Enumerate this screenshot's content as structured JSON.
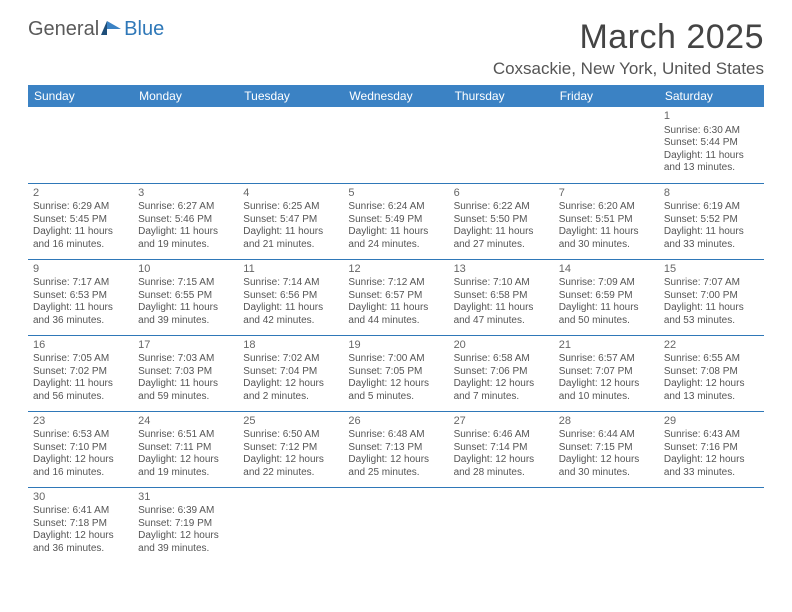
{
  "logo": {
    "text_general": "General",
    "text_blue": "Blue"
  },
  "title": "March 2025",
  "location": "Coxsackie, New York, United States",
  "colors": {
    "header_bg": "#3b82c4",
    "header_text": "#ffffff",
    "border": "#2f78b8",
    "body_text": "#555555",
    "title_text": "#444444"
  },
  "day_headers": [
    "Sunday",
    "Monday",
    "Tuesday",
    "Wednesday",
    "Thursday",
    "Friday",
    "Saturday"
  ],
  "weeks": [
    [
      null,
      null,
      null,
      null,
      null,
      null,
      {
        "n": "1",
        "sr": "Sunrise: 6:30 AM",
        "ss": "Sunset: 5:44 PM",
        "dl": "Daylight: 11 hours and 13 minutes."
      }
    ],
    [
      {
        "n": "2",
        "sr": "Sunrise: 6:29 AM",
        "ss": "Sunset: 5:45 PM",
        "dl": "Daylight: 11 hours and 16 minutes."
      },
      {
        "n": "3",
        "sr": "Sunrise: 6:27 AM",
        "ss": "Sunset: 5:46 PM",
        "dl": "Daylight: 11 hours and 19 minutes."
      },
      {
        "n": "4",
        "sr": "Sunrise: 6:25 AM",
        "ss": "Sunset: 5:47 PM",
        "dl": "Daylight: 11 hours and 21 minutes."
      },
      {
        "n": "5",
        "sr": "Sunrise: 6:24 AM",
        "ss": "Sunset: 5:49 PM",
        "dl": "Daylight: 11 hours and 24 minutes."
      },
      {
        "n": "6",
        "sr": "Sunrise: 6:22 AM",
        "ss": "Sunset: 5:50 PM",
        "dl": "Daylight: 11 hours and 27 minutes."
      },
      {
        "n": "7",
        "sr": "Sunrise: 6:20 AM",
        "ss": "Sunset: 5:51 PM",
        "dl": "Daylight: 11 hours and 30 minutes."
      },
      {
        "n": "8",
        "sr": "Sunrise: 6:19 AM",
        "ss": "Sunset: 5:52 PM",
        "dl": "Daylight: 11 hours and 33 minutes."
      }
    ],
    [
      {
        "n": "9",
        "sr": "Sunrise: 7:17 AM",
        "ss": "Sunset: 6:53 PM",
        "dl": "Daylight: 11 hours and 36 minutes."
      },
      {
        "n": "10",
        "sr": "Sunrise: 7:15 AM",
        "ss": "Sunset: 6:55 PM",
        "dl": "Daylight: 11 hours and 39 minutes."
      },
      {
        "n": "11",
        "sr": "Sunrise: 7:14 AM",
        "ss": "Sunset: 6:56 PM",
        "dl": "Daylight: 11 hours and 42 minutes."
      },
      {
        "n": "12",
        "sr": "Sunrise: 7:12 AM",
        "ss": "Sunset: 6:57 PM",
        "dl": "Daylight: 11 hours and 44 minutes."
      },
      {
        "n": "13",
        "sr": "Sunrise: 7:10 AM",
        "ss": "Sunset: 6:58 PM",
        "dl": "Daylight: 11 hours and 47 minutes."
      },
      {
        "n": "14",
        "sr": "Sunrise: 7:09 AM",
        "ss": "Sunset: 6:59 PM",
        "dl": "Daylight: 11 hours and 50 minutes."
      },
      {
        "n": "15",
        "sr": "Sunrise: 7:07 AM",
        "ss": "Sunset: 7:00 PM",
        "dl": "Daylight: 11 hours and 53 minutes."
      }
    ],
    [
      {
        "n": "16",
        "sr": "Sunrise: 7:05 AM",
        "ss": "Sunset: 7:02 PM",
        "dl": "Daylight: 11 hours and 56 minutes."
      },
      {
        "n": "17",
        "sr": "Sunrise: 7:03 AM",
        "ss": "Sunset: 7:03 PM",
        "dl": "Daylight: 11 hours and 59 minutes."
      },
      {
        "n": "18",
        "sr": "Sunrise: 7:02 AM",
        "ss": "Sunset: 7:04 PM",
        "dl": "Daylight: 12 hours and 2 minutes."
      },
      {
        "n": "19",
        "sr": "Sunrise: 7:00 AM",
        "ss": "Sunset: 7:05 PM",
        "dl": "Daylight: 12 hours and 5 minutes."
      },
      {
        "n": "20",
        "sr": "Sunrise: 6:58 AM",
        "ss": "Sunset: 7:06 PM",
        "dl": "Daylight: 12 hours and 7 minutes."
      },
      {
        "n": "21",
        "sr": "Sunrise: 6:57 AM",
        "ss": "Sunset: 7:07 PM",
        "dl": "Daylight: 12 hours and 10 minutes."
      },
      {
        "n": "22",
        "sr": "Sunrise: 6:55 AM",
        "ss": "Sunset: 7:08 PM",
        "dl": "Daylight: 12 hours and 13 minutes."
      }
    ],
    [
      {
        "n": "23",
        "sr": "Sunrise: 6:53 AM",
        "ss": "Sunset: 7:10 PM",
        "dl": "Daylight: 12 hours and 16 minutes."
      },
      {
        "n": "24",
        "sr": "Sunrise: 6:51 AM",
        "ss": "Sunset: 7:11 PM",
        "dl": "Daylight: 12 hours and 19 minutes."
      },
      {
        "n": "25",
        "sr": "Sunrise: 6:50 AM",
        "ss": "Sunset: 7:12 PM",
        "dl": "Daylight: 12 hours and 22 minutes."
      },
      {
        "n": "26",
        "sr": "Sunrise: 6:48 AM",
        "ss": "Sunset: 7:13 PM",
        "dl": "Daylight: 12 hours and 25 minutes."
      },
      {
        "n": "27",
        "sr": "Sunrise: 6:46 AM",
        "ss": "Sunset: 7:14 PM",
        "dl": "Daylight: 12 hours and 28 minutes."
      },
      {
        "n": "28",
        "sr": "Sunrise: 6:44 AM",
        "ss": "Sunset: 7:15 PM",
        "dl": "Daylight: 12 hours and 30 minutes."
      },
      {
        "n": "29",
        "sr": "Sunrise: 6:43 AM",
        "ss": "Sunset: 7:16 PM",
        "dl": "Daylight: 12 hours and 33 minutes."
      }
    ],
    [
      {
        "n": "30",
        "sr": "Sunrise: 6:41 AM",
        "ss": "Sunset: 7:18 PM",
        "dl": "Daylight: 12 hours and 36 minutes."
      },
      {
        "n": "31",
        "sr": "Sunrise: 6:39 AM",
        "ss": "Sunset: 7:19 PM",
        "dl": "Daylight: 12 hours and 39 minutes."
      },
      null,
      null,
      null,
      null,
      null
    ]
  ]
}
